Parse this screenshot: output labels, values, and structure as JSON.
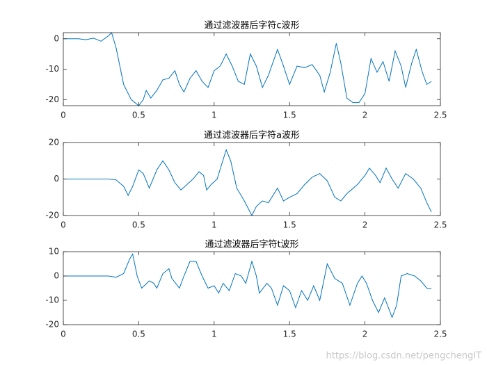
{
  "chart_data": [
    {
      "type": "line",
      "title": "通过滤波器后字符c波形",
      "color": "#0072bd",
      "x": [
        0,
        0.1,
        0.15,
        0.2,
        0.25,
        0.3,
        0.32,
        0.35,
        0.4,
        0.45,
        0.5,
        0.53,
        0.55,
        0.58,
        0.62,
        0.66,
        0.7,
        0.74,
        0.77,
        0.8,
        0.84,
        0.88,
        0.92,
        0.96,
        1.0,
        1.04,
        1.08,
        1.12,
        1.16,
        1.2,
        1.24,
        1.28,
        1.32,
        1.36,
        1.42,
        1.46,
        1.5,
        1.55,
        1.6,
        1.65,
        1.7,
        1.73,
        1.77,
        1.81,
        1.84,
        1.88,
        1.92,
        1.96,
        2.0,
        2.04,
        2.08,
        2.12,
        2.16,
        2.2,
        2.24,
        2.27,
        2.31,
        2.34,
        2.38,
        2.41,
        2.44
      ],
      "values": [
        0,
        0,
        -0.3,
        0.2,
        -0.8,
        1,
        2,
        -3,
        -15,
        -20,
        -22,
        -20,
        -17,
        -19.5,
        -17,
        -13.5,
        -13,
        -10.5,
        -15,
        -17.5,
        -13,
        -10.5,
        -14,
        -16,
        -10.5,
        -9,
        -5,
        -9,
        -14,
        -15,
        -5,
        -9,
        -16,
        -12,
        -3.5,
        -9,
        -15,
        -9,
        -9.5,
        -8.5,
        -12,
        -17.5,
        -11,
        -1.5,
        -8,
        -19.5,
        -21,
        -21,
        -18,
        -6.5,
        -11,
        -7.5,
        -14,
        -4,
        -9,
        -16,
        -8,
        -3.5,
        -11,
        -15,
        -14
      ],
      "xlim": [
        0,
        2.5
      ],
      "ylim": [
        -22,
        2
      ],
      "xticks": [
        0,
        0.5,
        1,
        1.5,
        2,
        2.5
      ],
      "yticks": [
        -20,
        -10,
        0
      ]
    },
    {
      "type": "line",
      "title": "通过滤波器后字符a波形",
      "color": "#0072bd",
      "x": [
        0,
        0.3,
        0.35,
        0.4,
        0.43,
        0.46,
        0.5,
        0.53,
        0.57,
        0.62,
        0.66,
        0.7,
        0.74,
        0.78,
        0.82,
        0.86,
        0.9,
        0.93,
        0.95,
        0.98,
        1.02,
        1.05,
        1.08,
        1.11,
        1.15,
        1.2,
        1.25,
        1.28,
        1.32,
        1.36,
        1.42,
        1.46,
        1.5,
        1.55,
        1.6,
        1.65,
        1.7,
        1.75,
        1.8,
        1.84,
        1.88,
        1.95,
        2.0,
        2.03,
        2.07,
        2.1,
        2.14,
        2.18,
        2.22,
        2.27,
        2.32,
        2.37,
        2.41,
        2.44
      ],
      "values": [
        0,
        0,
        -0.5,
        -4,
        -9,
        -4,
        5,
        3,
        -5,
        5,
        10,
        5,
        -2,
        -6,
        -3,
        0,
        4,
        2,
        -6,
        -3,
        0,
        8,
        16,
        10,
        -5,
        -12,
        -20,
        -15,
        -12,
        -13,
        -5,
        -12,
        -10,
        -8,
        -3,
        1,
        3,
        -1,
        -10,
        -12,
        -8,
        -3,
        2,
        6,
        2,
        -2,
        6,
        0,
        -5,
        3,
        0,
        -5,
        -13,
        -18
      ],
      "xlim": [
        0,
        2.5
      ],
      "ylim": [
        -20,
        20
      ],
      "xticks": [
        0,
        0.5,
        1,
        1.5,
        2,
        2.5
      ],
      "yticks": [
        -20,
        0,
        20
      ]
    },
    {
      "type": "line",
      "title": "通过滤波器后字符t波形",
      "color": "#0072bd",
      "x": [
        0,
        0.3,
        0.35,
        0.4,
        0.44,
        0.46,
        0.49,
        0.52,
        0.57,
        0.6,
        0.62,
        0.66,
        0.7,
        0.72,
        0.77,
        0.8,
        0.84,
        0.88,
        0.92,
        0.96,
        1.0,
        1.03,
        1.06,
        1.1,
        1.14,
        1.18,
        1.21,
        1.25,
        1.28,
        1.3,
        1.35,
        1.38,
        1.42,
        1.46,
        1.5,
        1.54,
        1.58,
        1.62,
        1.66,
        1.7,
        1.75,
        1.8,
        1.85,
        1.9,
        1.95,
        1.98,
        2.01,
        2.05,
        2.09,
        2.13,
        2.18,
        2.21,
        2.24,
        2.28,
        2.33,
        2.37,
        2.41,
        2.44
      ],
      "values": [
        0,
        0,
        -0.5,
        1,
        7,
        9,
        0,
        -5,
        -2,
        -3,
        -5,
        1,
        3,
        -1,
        -5,
        0,
        6,
        6,
        0,
        -5,
        -4,
        -7,
        -3,
        -6,
        1,
        0,
        -3,
        6,
        0,
        -7,
        -3,
        -5,
        -12,
        -4,
        -6,
        -13,
        -6,
        -10,
        -4,
        -10,
        5,
        -1,
        -3,
        -12,
        -3,
        0,
        -3,
        -10,
        -15,
        -9,
        -17,
        -12,
        0,
        1,
        0,
        -2,
        -5,
        -5
      ],
      "xlim": [
        0,
        2.5
      ],
      "ylim": [
        -20,
        10
      ],
      "xticks": [
        0,
        0.5,
        1,
        1.5,
        2,
        2.5
      ],
      "yticks": [
        -20,
        -10,
        0,
        10
      ]
    }
  ],
  "watermark": "https://blog.csdn.net/pengchengIT"
}
